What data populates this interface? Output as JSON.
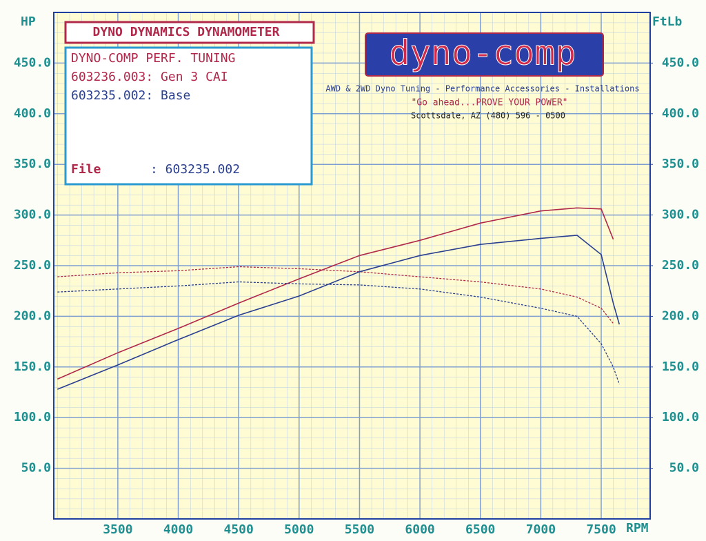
{
  "chart_data": {
    "type": "line",
    "header": "DYNO DYNAMICS DYNAMOMETER",
    "shop": "DYNO-COMP PERF. TUNING",
    "file_label": "File",
    "file_value": ": 603235.002",
    "logo": "dyno-comp",
    "tagline": "AWD & 2WD Dyno Tuning - Performance Accessories - Installations",
    "slogan": "\"Go ahead...PROVE YOUR POWER\"",
    "contact": "Scottsdale, AZ (480) 596 - 0500",
    "y_label": "HP",
    "y2_label": "FtLb",
    "x_label": "RPM",
    "x": [
      3000,
      3500,
      4000,
      4500,
      5000,
      5500,
      6000,
      6500,
      7000,
      7300,
      7500,
      7600,
      7650
    ],
    "series": [
      {
        "name": "603236.003: Gen 3 CAI",
        "color": "#b0284a",
        "values": [
          138,
          164,
          188,
          213,
          237,
          260,
          275,
          292,
          304,
          307,
          306,
          276,
          null
        ]
      },
      {
        "color": "#b0284a",
        "axis": "y2",
        "dashed": true,
        "values": [
          239,
          243,
          245,
          249,
          247,
          244,
          239,
          234,
          227,
          219,
          208,
          193,
          null
        ]
      },
      {
        "name": "603235.002: Base",
        "color": "#2a3f8f",
        "values": [
          128,
          152,
          177,
          201,
          220,
          244,
          260,
          271,
          277,
          280,
          261,
          213,
          192
        ]
      },
      {
        "color": "#2a3f8f",
        "axis": "y2",
        "dashed": true,
        "values": [
          224,
          227,
          230,
          234,
          232,
          231,
          227,
          219,
          208,
          200,
          173,
          150,
          133
        ]
      }
    ],
    "xlim": [
      2970,
      7905
    ],
    "xticks": [
      3500,
      4000,
      4500,
      5000,
      5500,
      6000,
      6500,
      7000,
      7500
    ],
    "ylim": [
      0,
      500
    ],
    "yticks": [
      {
        "value": 50,
        "label": "50.0"
      },
      {
        "value": 100,
        "label": "100.0"
      },
      {
        "value": 150,
        "label": "150.0"
      },
      {
        "value": 200,
        "label": "200.0"
      },
      {
        "value": 250,
        "label": "250.0"
      },
      {
        "value": 300,
        "label": "300.0"
      },
      {
        "value": 350,
        "label": "350.0"
      },
      {
        "value": 400,
        "label": "400.0"
      },
      {
        "value": 450,
        "label": "450.0"
      }
    ],
    "y2lim": [
      0,
      500
    ],
    "y2ticks": [
      {
        "value": 50,
        "label": "50.0"
      },
      {
        "value": 100,
        "label": "100.0"
      },
      {
        "value": 150,
        "label": "150.0"
      },
      {
        "value": 200,
        "label": "200.0"
      },
      {
        "value": 250,
        "label": "250.0"
      },
      {
        "value": 300,
        "label": "300.0"
      },
      {
        "value": 350,
        "label": "350.0"
      },
      {
        "value": 400,
        "label": "400.0"
      },
      {
        "value": 450,
        "label": "450.0"
      }
    ],
    "grid": true
  }
}
